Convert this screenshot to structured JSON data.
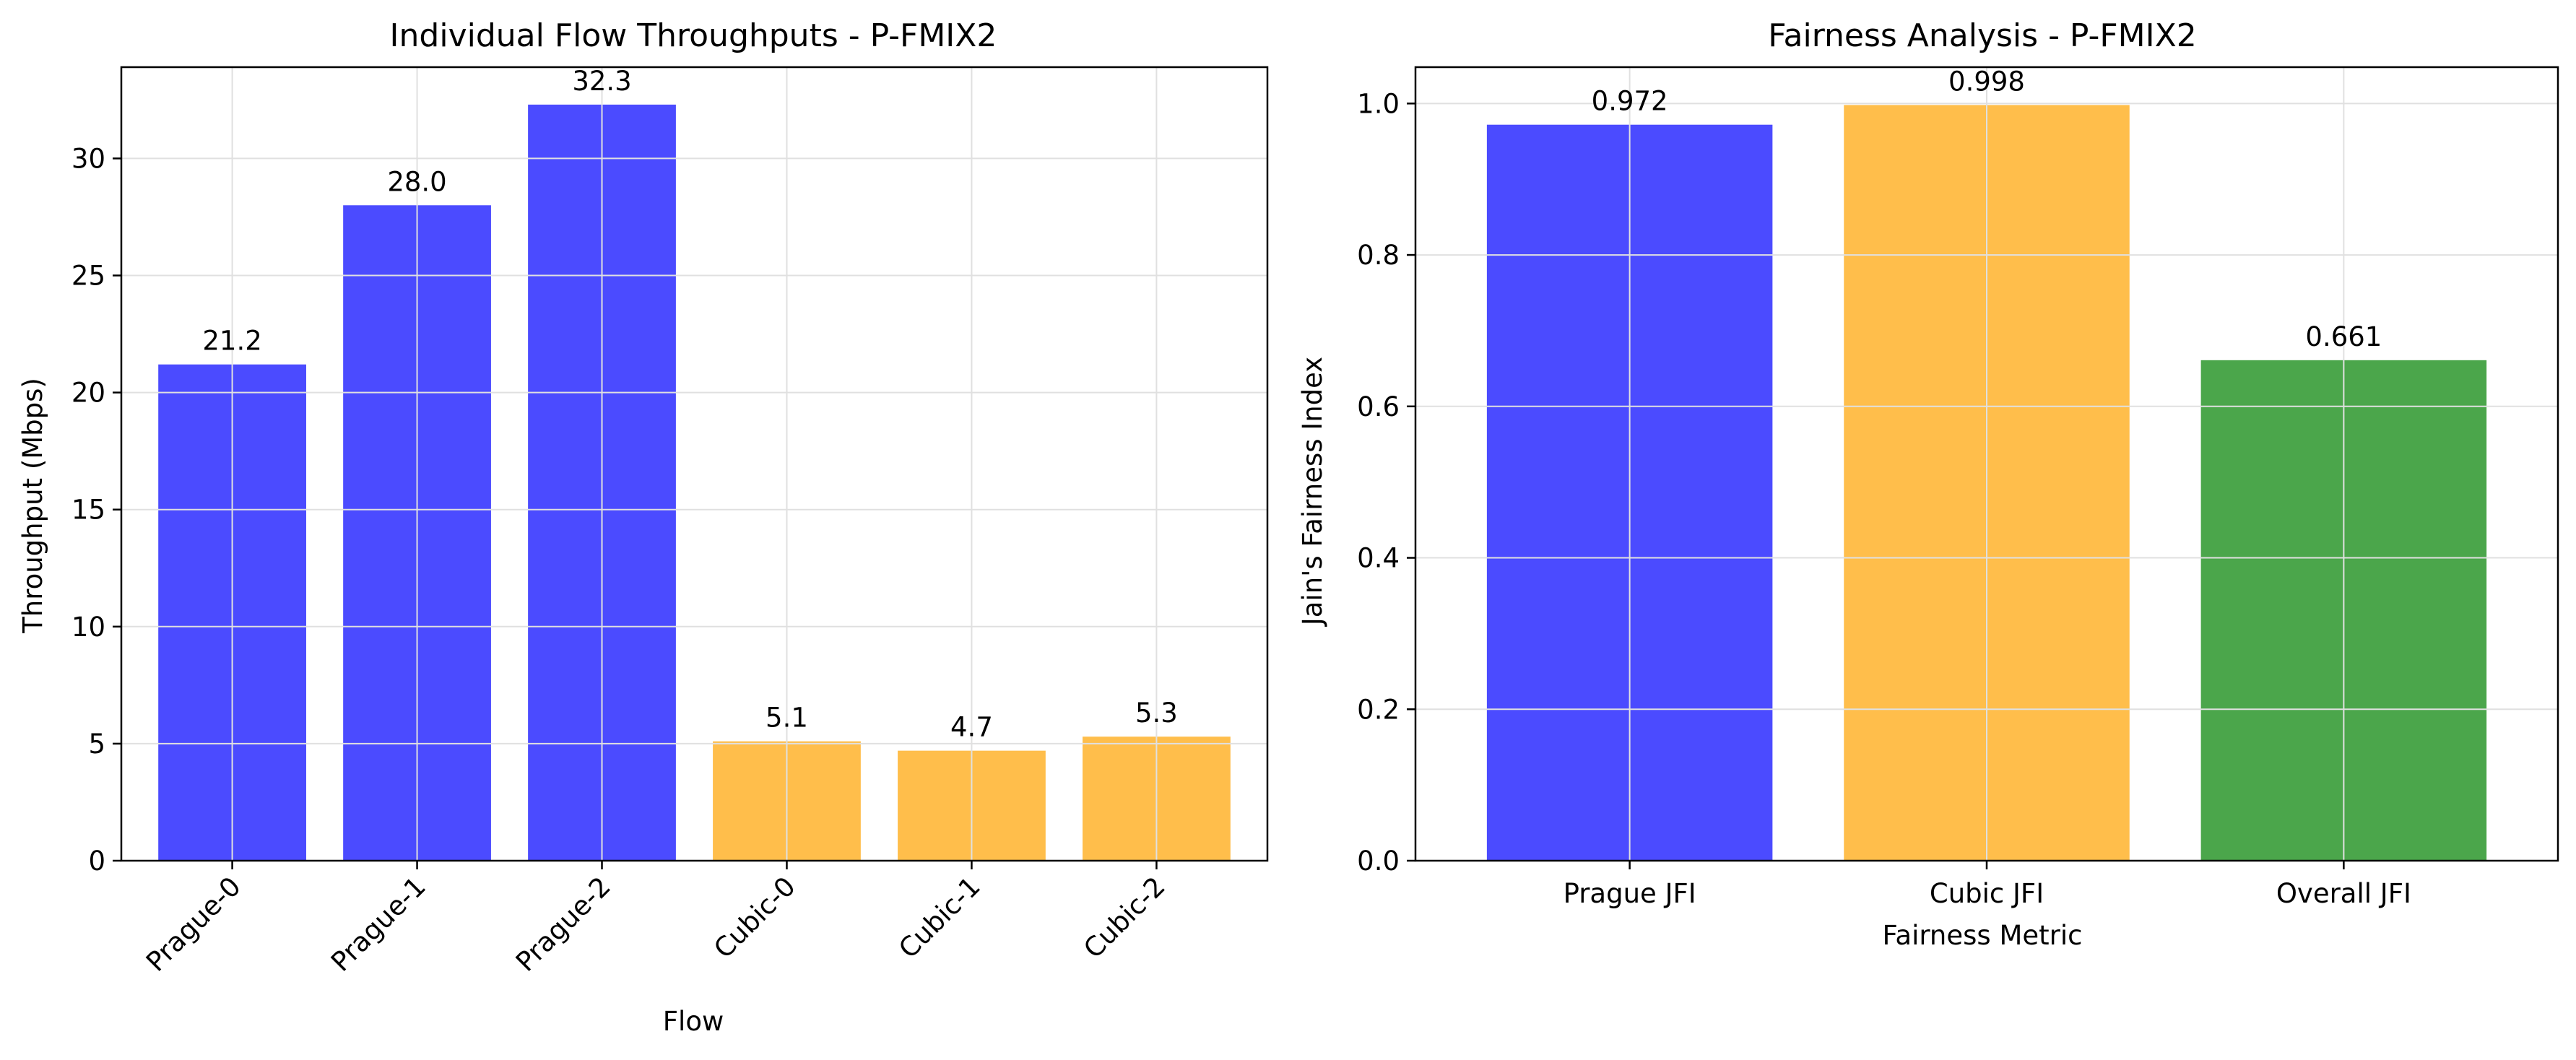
{
  "colors": {
    "prague": "#4b4bff",
    "cubic": "#ffbe4b",
    "overall": "#4ba64b",
    "grid": "#e0e0e0",
    "axis": "#000000"
  },
  "chart_data": [
    {
      "type": "bar",
      "title": "Individual Flow Throughputs - P-FMIX2",
      "xlabel": "Flow",
      "ylabel": "Throughput (Mbps)",
      "categories": [
        "Prague-0",
        "Prague-1",
        "Prague-2",
        "Cubic-0",
        "Cubic-1",
        "Cubic-2"
      ],
      "values": [
        21.2,
        28.0,
        32.3,
        5.1,
        4.7,
        5.3
      ],
      "value_labels": [
        "21.2",
        "28.0",
        "32.3",
        "5.1",
        "4.7",
        "5.3"
      ],
      "bar_colors": [
        "#4b4bff",
        "#4b4bff",
        "#4b4bff",
        "#ffbe4b",
        "#ffbe4b",
        "#ffbe4b"
      ],
      "ylim": [
        0,
        33.9
      ],
      "yticks": [
        0,
        5,
        10,
        15,
        20,
        25,
        30
      ],
      "ytick_labels": [
        "0",
        "5",
        "10",
        "15",
        "20",
        "25",
        "30"
      ],
      "xtick_rotation": 45,
      "grid": true
    },
    {
      "type": "bar",
      "title": "Fairness Analysis - P-FMIX2",
      "xlabel": "Fairness Metric",
      "ylabel": "Jain's Fairness Index",
      "categories": [
        "Prague JFI",
        "Cubic JFI",
        "Overall JFI"
      ],
      "values": [
        0.972,
        0.998,
        0.661
      ],
      "value_labels": [
        "0.972",
        "0.998",
        "0.661"
      ],
      "bar_colors": [
        "#4b4bff",
        "#ffbe4b",
        "#4ba64b"
      ],
      "ylim": [
        0,
        1.048
      ],
      "yticks": [
        0,
        0.2,
        0.4,
        0.6,
        0.8,
        1.0
      ],
      "ytick_labels": [
        "0.0",
        "0.2",
        "0.4",
        "0.6",
        "0.8",
        "1.0"
      ],
      "xtick_rotation": 0,
      "grid": true
    }
  ]
}
